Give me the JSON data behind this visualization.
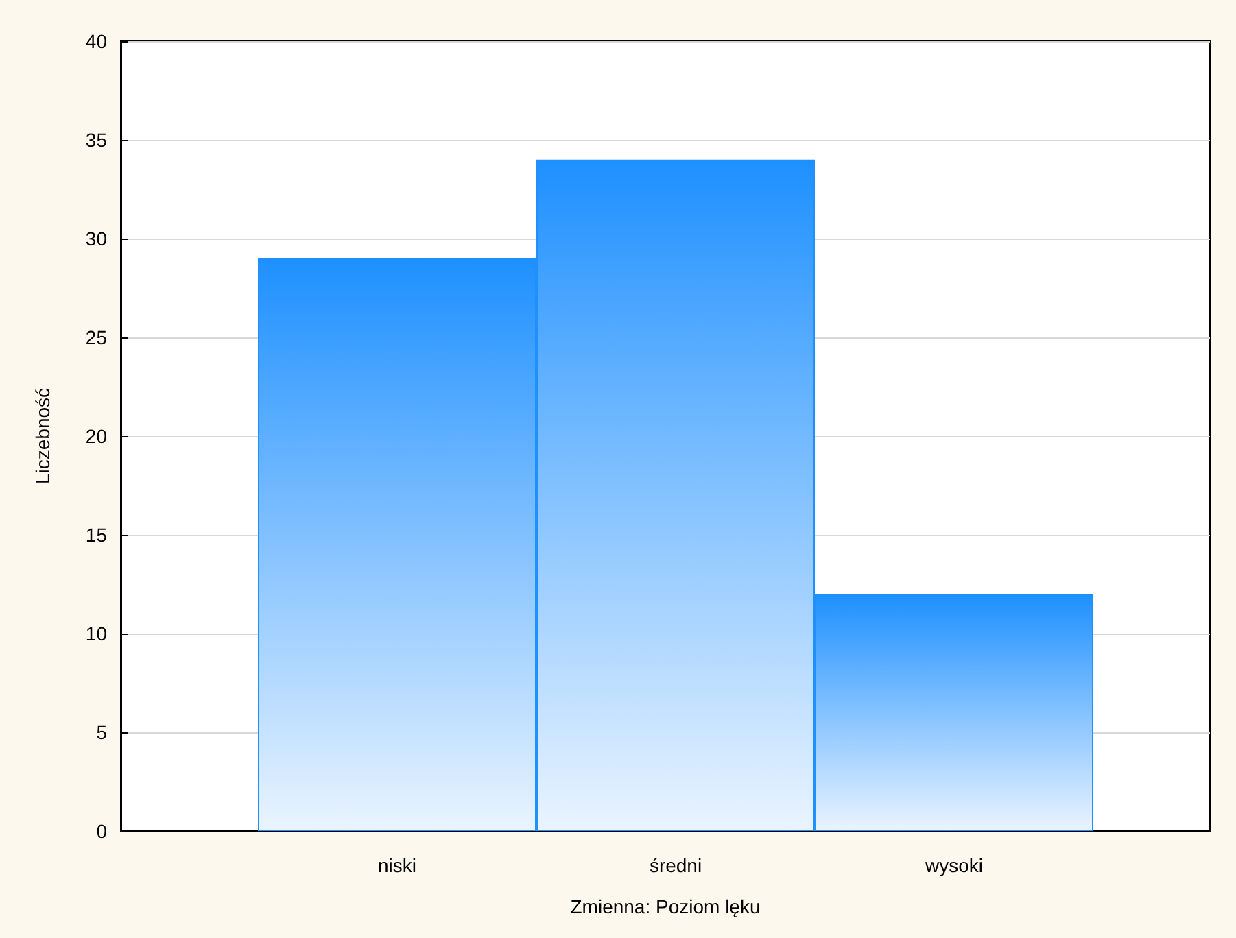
{
  "chart_data": {
    "type": "bar",
    "xlabel": "Zmienna: Poziom lęku",
    "ylabel": "Liczebność",
    "categories": [
      "niski",
      "średni",
      "wysoki"
    ],
    "values": [
      29,
      34,
      12
    ],
    "color": "#1e90ff",
    "ylim": [
      0,
      40
    ],
    "yticks": [
      0,
      5,
      10,
      15,
      20,
      25,
      30,
      35,
      40
    ],
    "grid": "y"
  }
}
